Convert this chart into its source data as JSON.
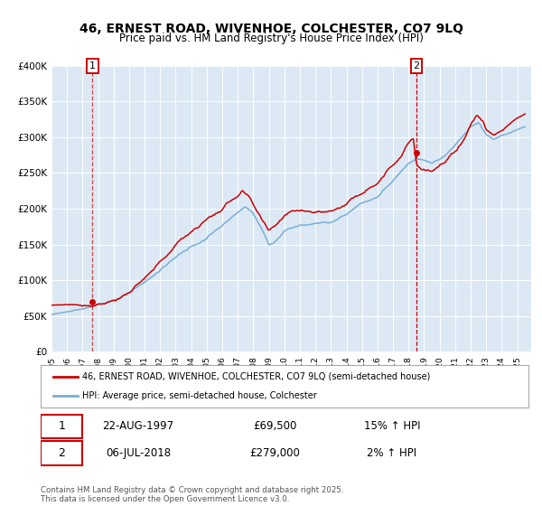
{
  "title_line1": "46, ERNEST ROAD, WIVENHOE, COLCHESTER, CO7 9LQ",
  "title_line2": "Price paid vs. HM Land Registry's House Price Index (HPI)",
  "bg_color": "#dce9f5",
  "red_line_color": "#cc0000",
  "blue_line_color": "#7aadd4",
  "marker1_date": 1997.64,
  "marker1_value": 69500,
  "marker2_date": 2018.51,
  "marker2_value": 279000,
  "vline1_color": "#cc4444",
  "vline2_color": "#cc0000",
  "legend_label1": "46, ERNEST ROAD, WIVENHOE, COLCHESTER, CO7 9LQ (semi-detached house)",
  "legend_label2": "HPI: Average price, semi-detached house, Colchester",
  "table_row1_num": "1",
  "table_row1_date": "22-AUG-1997",
  "table_row1_price": "£69,500",
  "table_row1_hpi": "15% ↑ HPI",
  "table_row2_num": "2",
  "table_row2_date": "06-JUL-2018",
  "table_row2_price": "£279,000",
  "table_row2_hpi": "2% ↑ HPI",
  "footer": "Contains HM Land Registry data © Crown copyright and database right 2025.\nThis data is licensed under the Open Government Licence v3.0.",
  "ylim_min": 0,
  "ylim_max": 400000,
  "yticks": [
    0,
    50000,
    100000,
    150000,
    200000,
    250000,
    300000,
    350000,
    400000
  ],
  "xmin": 1995.0,
  "xmax": 2025.9
}
